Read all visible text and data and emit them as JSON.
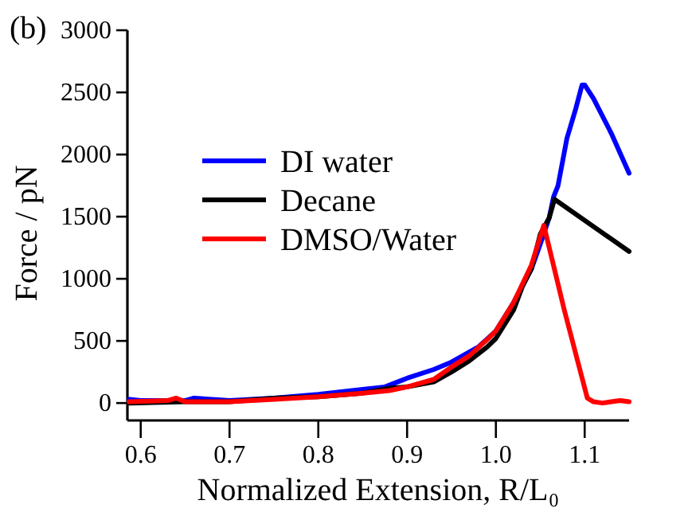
{
  "chart_data": {
    "type": "line",
    "xlabel": "Normalized Extension, R/L₀",
    "ylabel": "Force / pN",
    "annotations": [
      "(b)"
    ],
    "xlim": [
      0.585,
      1.15
    ],
    "ylim": [
      -140,
      3000
    ],
    "xticks": [
      {
        "value": 0.6,
        "label": "0.6"
      },
      {
        "value": 0.7,
        "label": "0.7"
      },
      {
        "value": 0.8,
        "label": "0.8"
      },
      {
        "value": 0.9,
        "label": "0.9"
      },
      {
        "value": 1.0,
        "label": "1.0"
      },
      {
        "value": 1.1,
        "label": "1.1"
      }
    ],
    "yticks": [
      0,
      500,
      1000,
      1500,
      2000,
      2500,
      3000
    ],
    "grid": false,
    "legend": "top left",
    "line_style": "solid",
    "series": [
      {
        "name": "DI water",
        "color": "#0000ff",
        "x": [
          0.587,
          0.6,
          0.65,
          0.66,
          0.7,
          0.75,
          0.8,
          0.85,
          0.875,
          0.9,
          0.93,
          0.95,
          0.97,
          0.98,
          1.0,
          1.02,
          1.04,
          1.05,
          1.06,
          1.065,
          1.07,
          1.08,
          1.09,
          1.097,
          1.1,
          1.11,
          1.13,
          1.15
        ],
        "values": [
          30,
          20,
          20,
          40,
          20,
          40,
          70,
          110,
          130,
          200,
          270,
          330,
          410,
          450,
          580,
          810,
          1080,
          1280,
          1490,
          1660,
          1750,
          2130,
          2370,
          2560,
          2560,
          2450,
          2170,
          1850
        ]
      },
      {
        "name": "Decane",
        "color": "#000000",
        "x": [
          0.587,
          0.65,
          0.7,
          0.75,
          0.8,
          0.85,
          0.88,
          0.9,
          0.93,
          0.95,
          0.97,
          0.99,
          1.0,
          1.02,
          1.03,
          1.04,
          1.05,
          1.06,
          1.066,
          1.15
        ],
        "values": [
          0,
          10,
          10,
          40,
          50,
          80,
          120,
          130,
          170,
          250,
          340,
          450,
          520,
          750,
          940,
          1080,
          1360,
          1490,
          1640,
          1220
        ]
      },
      {
        "name": "DMSO/Water",
        "color": "#ff0000",
        "x": [
          0.587,
          0.63,
          0.64,
          0.65,
          0.7,
          0.75,
          0.8,
          0.85,
          0.88,
          0.9,
          0.93,
          0.95,
          0.97,
          0.99,
          1.0,
          1.02,
          1.04,
          1.05,
          1.054,
          1.077,
          1.103,
          1.11,
          1.12,
          1.13,
          1.14,
          1.15
        ],
        "values": [
          10,
          20,
          40,
          10,
          10,
          30,
          50,
          80,
          100,
          130,
          190,
          290,
          380,
          510,
          580,
          810,
          1110,
          1340,
          1430,
          750,
          40,
          10,
          0,
          10,
          20,
          10
        ]
      }
    ]
  }
}
